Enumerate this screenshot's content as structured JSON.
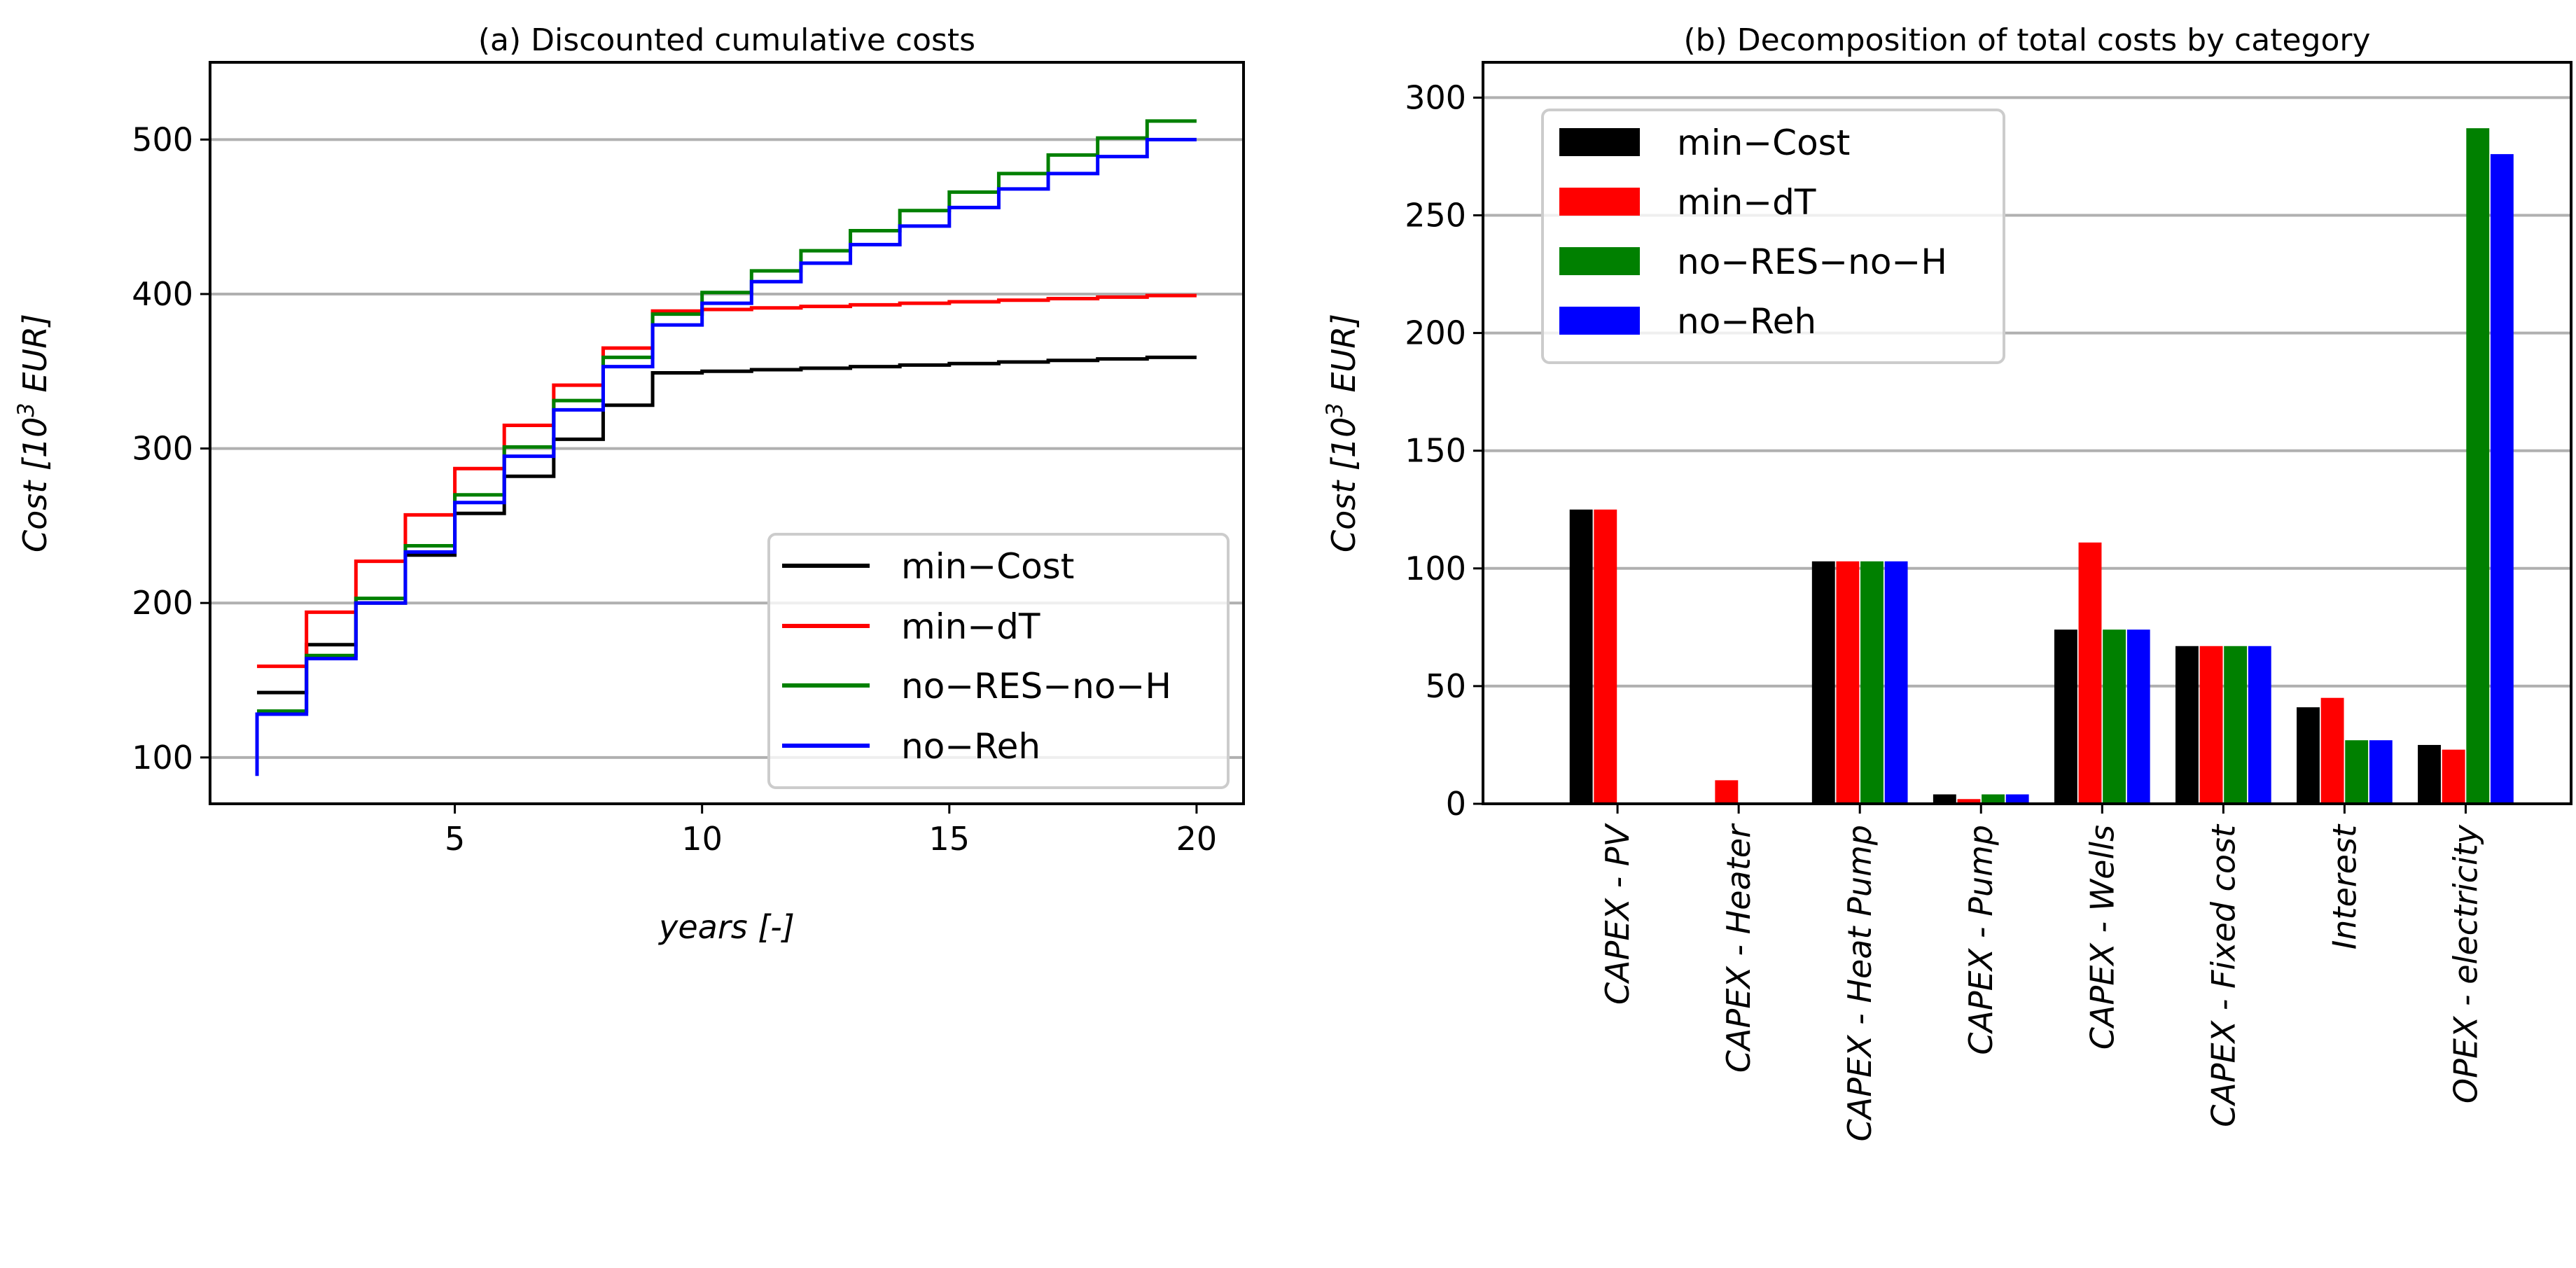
{
  "chart_data": [
    {
      "type": "line",
      "drawstyle": "steps-post",
      "title": "(a) Discounted cumulative costs",
      "xlabel": "years [-]",
      "ylabel": "Cost [10³ EUR]",
      "ylabel_parts": {
        "pre": "Cost [10",
        "sup": "3",
        "post": " EUR]"
      },
      "xlim": [
        0.05,
        20.95
      ],
      "ylim": [
        70,
        550
      ],
      "xticks": [
        5,
        10,
        15,
        20
      ],
      "yticks": [
        100,
        200,
        300,
        400,
        500
      ],
      "grid": "y",
      "legend_position": "lower-right",
      "x": [
        1,
        2,
        3,
        4,
        5,
        6,
        7,
        8,
        9,
        10,
        11,
        12,
        13,
        14,
        15,
        16,
        17,
        18,
        19,
        20
      ],
      "series": [
        {
          "name": "min−Cost",
          "color": "#000000",
          "values": [
            142,
            173,
            200,
            231,
            258,
            282,
            306,
            328,
            349,
            350,
            351,
            352,
            353,
            354,
            355,
            356,
            357,
            358,
            359,
            359
          ]
        },
        {
          "name": "min−dT",
          "color": "#ff0000",
          "values": [
            159,
            194,
            227,
            257,
            287,
            315,
            341,
            365,
            389,
            390,
            391,
            392,
            393,
            394,
            395,
            396,
            397,
            398,
            399,
            399
          ]
        },
        {
          "name": "no−RES−no−H",
          "color": "#008000",
          "values": [
            130,
            166,
            203,
            237,
            270,
            301,
            331,
            359,
            387,
            401,
            415,
            428,
            441,
            454,
            466,
            478,
            490,
            501,
            512,
            512
          ]
        },
        {
          "name": "no−Reh",
          "color": "#0000ff",
          "start_value": 88,
          "values": [
            128,
            164,
            200,
            233,
            265,
            295,
            325,
            353,
            380,
            394,
            408,
            420,
            432,
            444,
            456,
            468,
            478,
            489,
            500,
            500
          ]
        }
      ]
    },
    {
      "type": "bar",
      "title": "(b) Decomposition of total costs by category",
      "xlabel": "",
      "ylabel": "Cost [10³ EUR]",
      "ylabel_parts": {
        "pre": "Cost [10",
        "sup": "3",
        "post": " EUR]"
      },
      "ylim": [
        0,
        315
      ],
      "yticks": [
        0,
        50,
        100,
        150,
        200,
        250,
        300
      ],
      "grid": "y",
      "legend_position": "upper-left",
      "categories": [
        "CAPEX - PV",
        "CAPEX - Heater",
        "CAPEX - Heat Pump",
        "CAPEX - Pump",
        "CAPEX - Wells",
        "CAPEX - Fixed cost",
        "Interest",
        "OPEX - electricity"
      ],
      "series": [
        {
          "name": "min−Cost",
          "color": "#000000",
          "values": [
            125,
            0,
            103,
            4,
            74,
            67,
            41,
            25
          ]
        },
        {
          "name": "min−dT",
          "color": "#ff0000",
          "values": [
            125,
            10,
            103,
            2,
            111,
            67,
            45,
            23
          ]
        },
        {
          "name": "no−RES−no−H",
          "color": "#008000",
          "values": [
            0,
            0,
            103,
            4,
            74,
            67,
            27,
            287
          ]
        },
        {
          "name": "no−Reh",
          "color": "#0000ff",
          "values": [
            0,
            0,
            103,
            4,
            74,
            67,
            27,
            276
          ]
        }
      ]
    }
  ]
}
